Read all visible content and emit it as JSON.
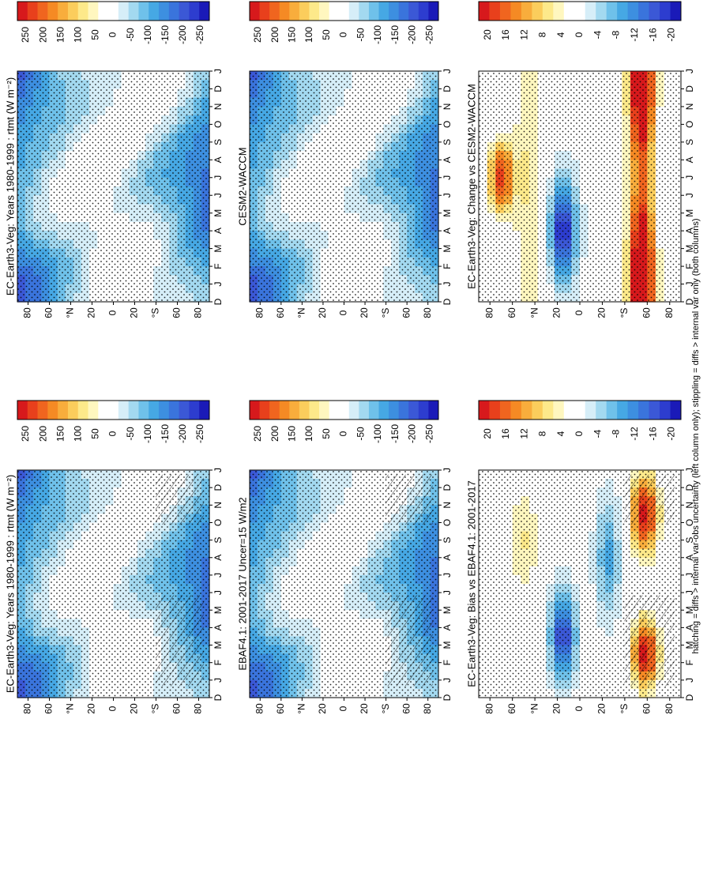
{
  "footnote": "hatching = diffs > internal var-obs uncertainty (left column only); stippling = diffs > internal var only (both columns)",
  "month_labels": [
    "D",
    "J",
    "F",
    "M",
    "A",
    "M",
    "J",
    "J",
    "A",
    "S",
    "O",
    "N",
    "D",
    "J"
  ],
  "lat_labels": [
    "80",
    "60",
    "°N",
    "20",
    "0",
    "20",
    "°S",
    "60",
    "80"
  ],
  "abs_scale": {
    "ticks": [
      "250",
      "200",
      "150",
      "100",
      "50",
      "0",
      "-50",
      "-100",
      "-150",
      "-200",
      "-250"
    ],
    "colors": [
      "#d7191c",
      "#e8401c",
      "#f0651f",
      "#f58a24",
      "#f8ad3c",
      "#fbcd5c",
      "#fde98a",
      "#fff7bf",
      "#ffffff",
      "#ffffff",
      "#d6eef8",
      "#a3d9f0",
      "#6fc1ea",
      "#46a8e4",
      "#3d8fe0",
      "#3a74dc",
      "#3b58d6",
      "#2d3dcf",
      "#1a1ab8"
    ]
  },
  "diff_scale": {
    "ticks": [
      "20",
      "16",
      "12",
      "8",
      "4",
      "0",
      "-4",
      "-8",
      "-12",
      "-16",
      "-20"
    ],
    "colors": [
      "#d7191c",
      "#e8401c",
      "#f0651f",
      "#f58a24",
      "#f8ad3c",
      "#fbcd5c",
      "#fde98a",
      "#fff7bf",
      "#ffffff",
      "#ffffff",
      "#d6eef8",
      "#a3d9f0",
      "#6fc1ea",
      "#46a8e4",
      "#3d8fe0",
      "#3a74dc",
      "#3b58d6",
      "#2d3dcf",
      "#1a1ab8"
    ]
  },
  "chart_data": [
    {
      "type": "heatmap",
      "title": "EC-Earth3-Veg: Years 1980-1999 : rtmt (W m⁻²)",
      "x": "month",
      "y": "latitude",
      "colorbar": "abs_scale",
      "kind": "abs",
      "hatching": true,
      "stippling": true
    },
    {
      "type": "heatmap",
      "title": "EC-Earth3-Veg: Years 1980-1999 : rtmt (W m⁻²)",
      "x": "month",
      "y": "latitude",
      "colorbar": "abs_scale",
      "kind": "abs",
      "hatching": false,
      "stippling": true
    },
    {
      "type": "heatmap",
      "title": "EBAF4.1: 2001-2017 Uncer=15 W/m2",
      "x": "month",
      "y": "latitude",
      "colorbar": "abs_scale",
      "kind": "abs",
      "hatching": true,
      "stippling": true
    },
    {
      "type": "heatmap",
      "title": "CESM2-WACCM",
      "x": "month",
      "y": "latitude",
      "colorbar": "abs_scale",
      "kind": "abs",
      "hatching": false,
      "stippling": true
    },
    {
      "type": "heatmap",
      "title": "EC-Earth3-Veg: Bias vs EBAF4.1: 2001-2017",
      "x": "month",
      "y": "latitude",
      "colorbar": "diff_scale",
      "kind": "bias",
      "hatching": true,
      "stippling": true
    },
    {
      "type": "heatmap",
      "title": "EC-Earth3-Veg: Change vs CESM2-WACCM",
      "x": "month",
      "y": "latitude",
      "colorbar": "diff_scale",
      "kind": "change",
      "hatching": false,
      "stippling": true
    }
  ]
}
